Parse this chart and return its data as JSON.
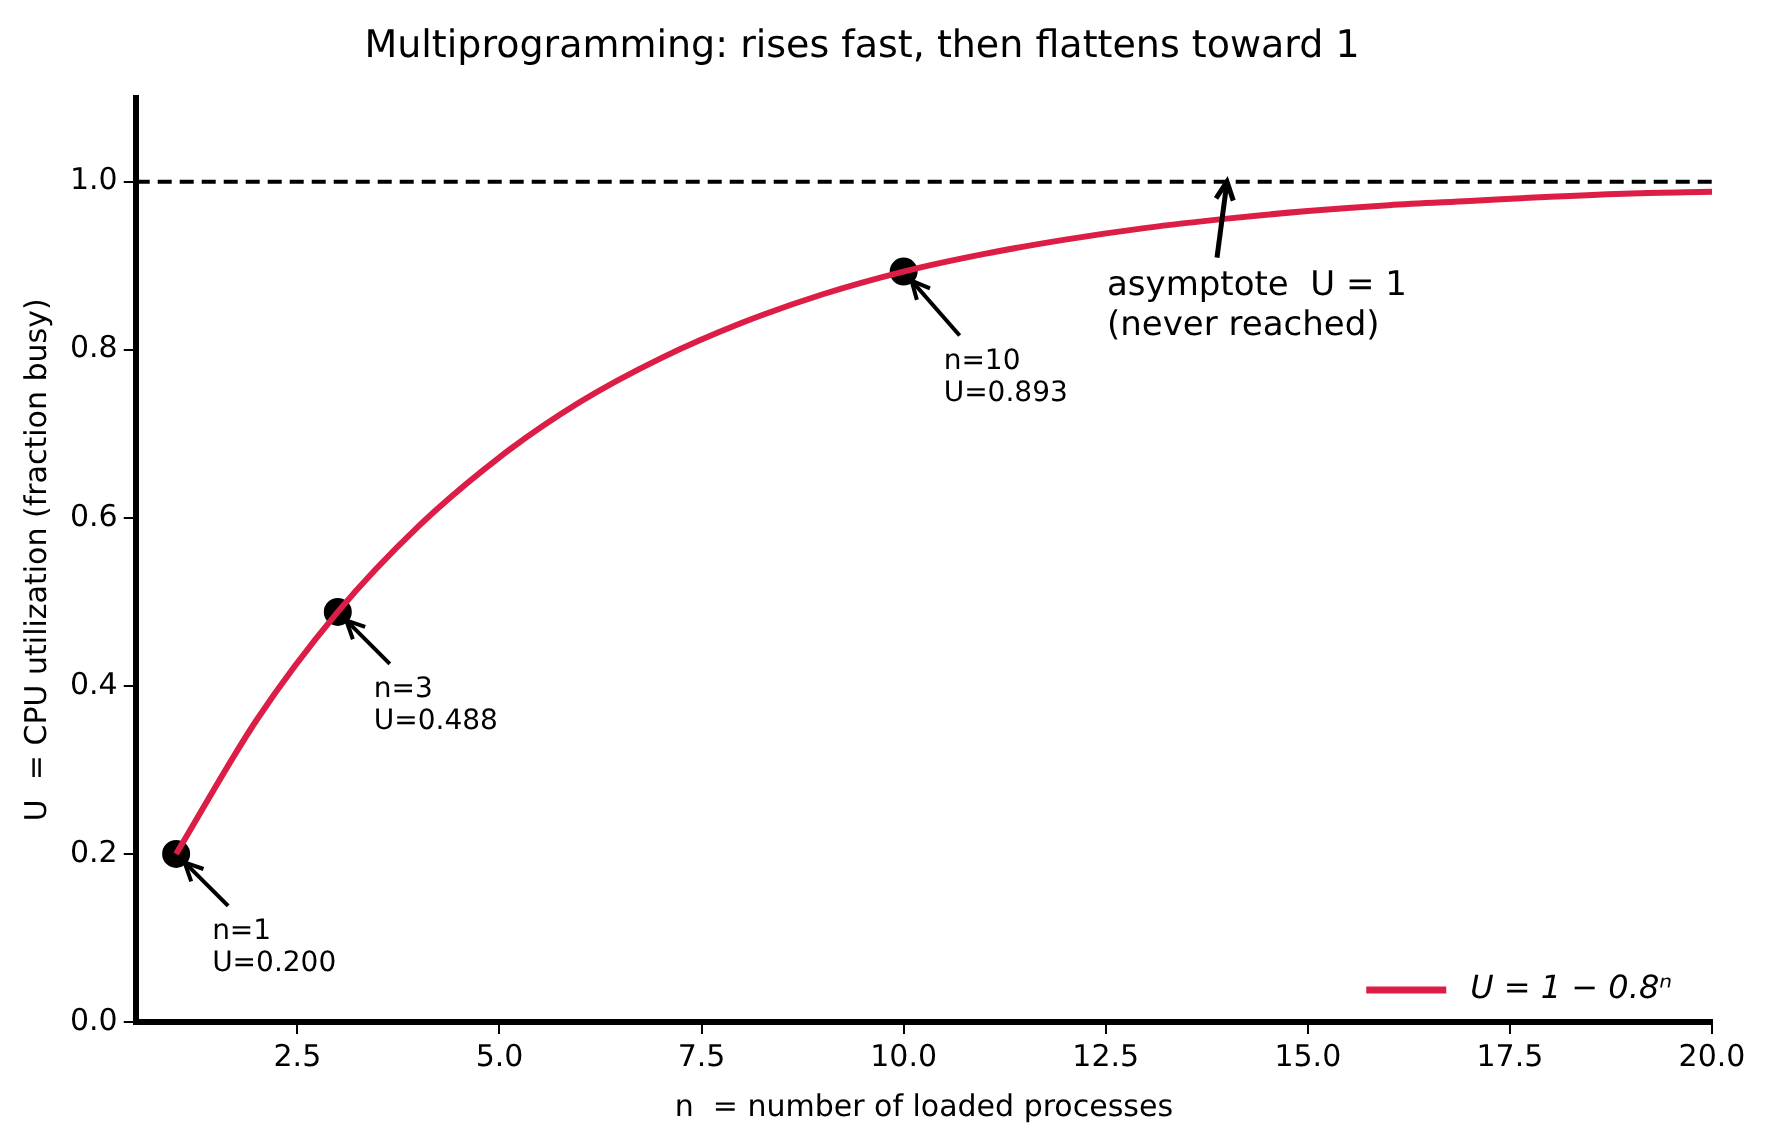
{
  "chart_data": {
    "type": "line",
    "title": "Multiprogramming: rises fast, then flattens toward 1",
    "xlabel": "n  = number of loaded processes",
    "ylabel": "U  = CPU utilization (fraction busy)",
    "x": [
      1,
      2,
      3,
      4,
      5,
      6,
      7,
      8,
      9,
      10,
      11,
      12,
      13,
      14,
      15,
      16,
      17,
      18,
      19,
      20
    ],
    "series": [
      {
        "name": "U = 1 − 0.8ⁿ",
        "color": "#dc1e46",
        "values": [
          0.2,
          0.36,
          0.488,
          0.59,
          0.672,
          0.738,
          0.79,
          0.832,
          0.866,
          0.893,
          0.914,
          0.931,
          0.945,
          0.956,
          0.965,
          0.972,
          0.977,
          0.982,
          0.986,
          0.988
        ]
      },
      {
        "type": "scatter",
        "color": "#000000",
        "x": [
          1,
          3,
          10
        ],
        "values": [
          0.2,
          0.488,
          0.893
        ]
      }
    ],
    "xlim": [
      0.5,
      20
    ],
    "xticks": [
      {
        "value": 2.5,
        "label": "2.5"
      },
      {
        "value": 5,
        "label": "5.0"
      },
      {
        "value": 7.5,
        "label": "7.5"
      },
      {
        "value": 10,
        "label": "10.0"
      },
      {
        "value": 12.5,
        "label": "12.5"
      },
      {
        "value": 15,
        "label": "15.0"
      },
      {
        "value": 17.5,
        "label": "17.5"
      },
      {
        "value": 20,
        "label": "20.0"
      }
    ],
    "ylim": [
      0,
      1.1
    ],
    "yticks": [
      {
        "value": 0,
        "label": "0.0"
      },
      {
        "value": 0.2,
        "label": "0.2"
      },
      {
        "value": 0.4,
        "label": "0.4"
      },
      {
        "value": 0.6,
        "label": "0.6"
      },
      {
        "value": 0.8,
        "label": "0.8"
      },
      {
        "value": 1,
        "label": "1.0"
      }
    ],
    "ref_lines": [
      {
        "axis": "y",
        "value": 1,
        "color": "#000000",
        "line_style": "dashed"
      }
    ],
    "annotations": [
      {
        "text": "n=1\nU=0.200",
        "x": 1,
        "y": 0.2
      },
      {
        "text": "n=3\nU=0.488",
        "x": 3,
        "y": 0.488
      },
      {
        "text": "n=10\nU=0.893",
        "x": 10,
        "y": 0.893
      },
      {
        "text": "asymptote  U = 1\n(never reached)",
        "x": 14,
        "y": 1
      }
    ],
    "grid": false,
    "legend": "bottom right",
    "line_style": "solid"
  }
}
